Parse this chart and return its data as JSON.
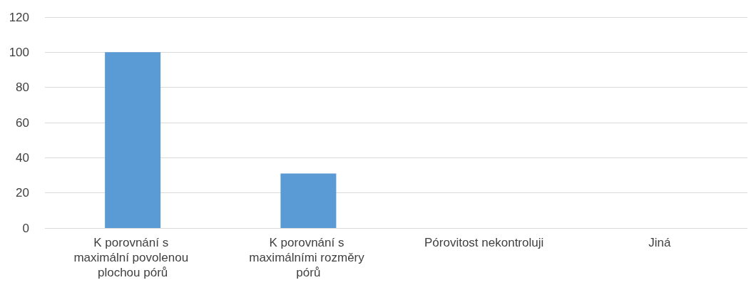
{
  "chart_data": {
    "type": "bar",
    "categories": [
      "K porovnání s maximální povolenou plochou pórů",
      "K porovnání s maximálními rozměry pórů",
      "Pórovitost nekontroluji",
      "Jiná"
    ],
    "values": [
      100,
      31,
      0,
      0
    ],
    "color": "#5b9bd5",
    "ylim": [
      0,
      120
    ],
    "yticks": [
      0,
      20,
      40,
      60,
      80,
      100,
      120
    ],
    "grid": "y"
  }
}
